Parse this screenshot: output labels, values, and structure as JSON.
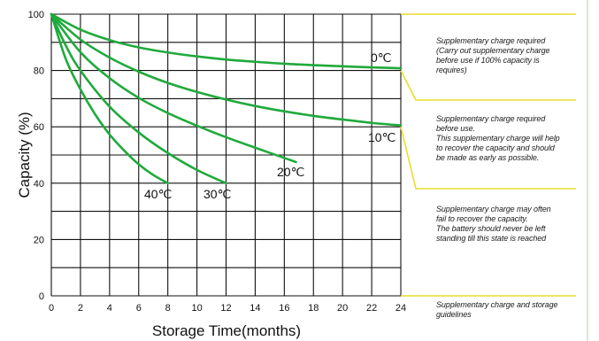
{
  "chart_data": {
    "type": "line",
    "title": "",
    "xlabel": "Storage Time(months)",
    "ylabel": "Capacity  (%)",
    "xlim": [
      0,
      24
    ],
    "ylim": [
      0,
      100
    ],
    "x_ticks": [
      0,
      2,
      4,
      6,
      8,
      10,
      12,
      14,
      16,
      18,
      20,
      22,
      24
    ],
    "y_ticks": [
      0,
      20,
      40,
      60,
      80,
      100
    ],
    "grid": true,
    "series": [
      {
        "name": "0℃",
        "x": [
          0,
          2,
          4,
          6,
          8,
          10,
          12,
          14,
          16,
          18,
          20,
          22,
          24
        ],
        "y": [
          100,
          94.5,
          90.8,
          88.2,
          86.4,
          85,
          83.9,
          83.1,
          82.4,
          81.9,
          81.5,
          81.1,
          80.8
        ]
      },
      {
        "name": "10℃",
        "x": [
          0,
          2,
          4,
          6,
          8,
          10,
          12,
          14,
          16,
          18,
          20,
          22,
          24
        ],
        "y": [
          100,
          91,
          84.6,
          79.6,
          75.6,
          72.4,
          69.7,
          67.4,
          65.5,
          63.9,
          62.6,
          61.4,
          60.5
        ]
      },
      {
        "name": "20℃",
        "x": [
          0,
          2,
          4,
          6,
          8,
          10,
          12,
          14,
          16.8
        ],
        "y": [
          100,
          86.5,
          77.3,
          70.3,
          64.9,
          60.4,
          56.3,
          52.6,
          47.5
        ]
      },
      {
        "name": "30℃",
        "x": [
          0,
          1,
          2,
          4,
          6,
          8,
          10,
          12
        ],
        "y": [
          100,
          88.8,
          80,
          67.2,
          58,
          50.7,
          44.7,
          40
        ]
      },
      {
        "name": "40℃",
        "x": [
          0,
          1,
          2,
          3,
          4,
          5,
          6,
          7,
          8
        ],
        "y": [
          100,
          84,
          73.3,
          64.5,
          57.3,
          51.6,
          46.7,
          42.9,
          40
        ]
      }
    ],
    "curve_labels": [
      "0℃",
      "10℃",
      "20℃",
      "30℃",
      "40℃"
    ],
    "line_color": "#1faa3c",
    "guide_color": "#e9de2a"
  },
  "notes": [
    "Supplementary charge required\n(Carry out supplementary charge\nbefore use if 100% capacity is\nrequires)",
    "Supplementary charge required\nbefore use.\nThis supplementary charge will help\nto recover the capacity and should\nbe made  as early as possible.",
    "Supplementary charge may often\nfail to recover the capacity.\nThe battery should never be left\nstanding till this state is reached",
    "Supplementary charge and storage\nguidelines"
  ]
}
